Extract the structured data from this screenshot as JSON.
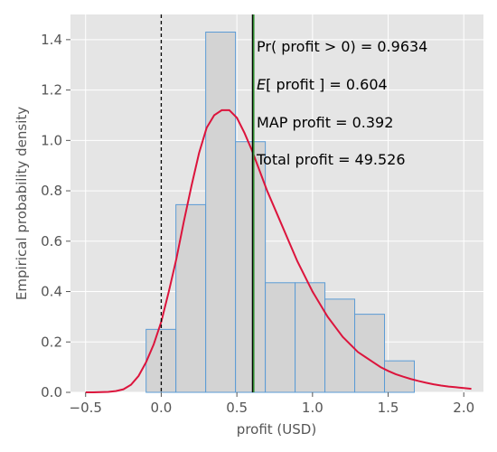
{
  "chart_data": {
    "type": "bar",
    "xlabel": "profit (USD)",
    "ylabel": "Empirical probability density",
    "xlim": [
      -0.6,
      2.13
    ],
    "ylim": [
      0.0,
      1.5
    ],
    "xticks": [
      -0.5,
      0.0,
      0.5,
      1.0,
      1.5,
      2.0
    ],
    "xtick_labels": [
      "−0.5",
      "0.0",
      "0.5",
      "1.0",
      "1.5",
      "2.0"
    ],
    "yticks": [
      0.0,
      0.2,
      0.4,
      0.6,
      0.8,
      1.0,
      1.2,
      1.4
    ],
    "ytick_labels": [
      "0.0",
      "0.2",
      "0.4",
      "0.6",
      "0.8",
      "1.0",
      "1.2",
      "1.4"
    ],
    "grid": true,
    "histogram": {
      "bin_edges": [
        -0.1,
        0.097,
        0.294,
        0.491,
        0.688,
        0.885,
        1.082,
        1.279,
        1.476,
        1.673
      ],
      "values": [
        0.25,
        0.745,
        1.43,
        0.995,
        0.435,
        0.435,
        0.37,
        0.31,
        0.125
      ],
      "fill": "#d3d3d3",
      "edge": "#5b9bd5"
    },
    "density_curve": {
      "color": "#dc143c",
      "x": [
        -0.5,
        -0.45,
        -0.4,
        -0.35,
        -0.3,
        -0.25,
        -0.2,
        -0.15,
        -0.1,
        -0.05,
        0.0,
        0.05,
        0.1,
        0.15,
        0.2,
        0.25,
        0.3,
        0.35,
        0.4,
        0.45,
        0.5,
        0.55,
        0.6,
        0.65,
        0.7,
        0.75,
        0.8,
        0.85,
        0.9,
        0.95,
        1.0,
        1.05,
        1.1,
        1.15,
        1.2,
        1.25,
        1.3,
        1.35,
        1.4,
        1.45,
        1.5,
        1.55,
        1.6,
        1.65,
        1.7,
        1.75,
        1.8,
        1.85,
        1.9,
        1.95,
        2.0,
        2.05
      ],
      "y": [
        0.0,
        0.0,
        0.001,
        0.002,
        0.005,
        0.012,
        0.03,
        0.065,
        0.12,
        0.19,
        0.28,
        0.4,
        0.53,
        0.68,
        0.82,
        0.95,
        1.05,
        1.1,
        1.12,
        1.12,
        1.09,
        1.03,
        0.96,
        0.88,
        0.8,
        0.73,
        0.66,
        0.59,
        0.52,
        0.46,
        0.4,
        0.35,
        0.3,
        0.26,
        0.22,
        0.19,
        0.16,
        0.14,
        0.12,
        0.1,
        0.085,
        0.072,
        0.062,
        0.053,
        0.045,
        0.038,
        0.032,
        0.027,
        0.023,
        0.02,
        0.017,
        0.014
      ]
    },
    "reference_lines": [
      {
        "x": 0.0,
        "style": "dashed",
        "color": "#000000"
      },
      {
        "x": 0.604,
        "style": "solid",
        "color": "#000000"
      },
      {
        "x": 0.604,
        "style": "solid",
        "color": "#2e8b2e"
      }
    ],
    "annotations": {
      "prob_line": "Pr( profit > 0) =  0.9634",
      "mean_line": "E[ profit ] =  0.604",
      "map_line": "MAP profit  =  0.392",
      "total_line": "Total profit  =  49.526"
    }
  }
}
